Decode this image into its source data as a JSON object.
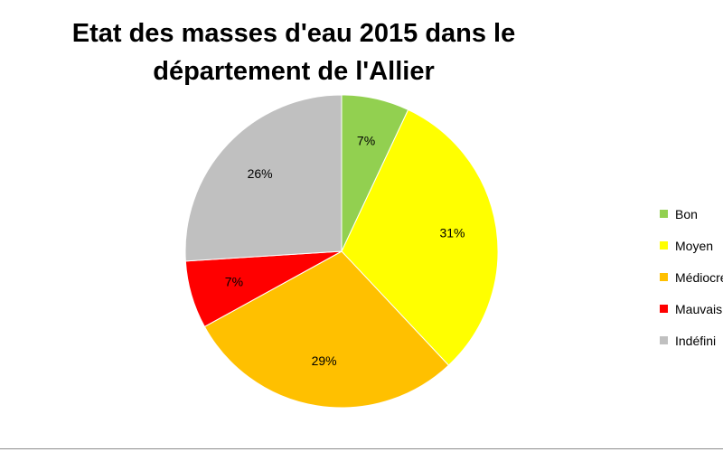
{
  "chart_data": {
    "type": "pie",
    "title_lines": [
      "Etat des masses d'eau 2015 dans le",
      "département de l'Allier"
    ],
    "slices": [
      {
        "name": "Bon",
        "label": "7%",
        "value": 7,
        "color": "#92d050"
      },
      {
        "name": "Moyen",
        "label": "31%",
        "value": 31,
        "color": "#ffff00"
      },
      {
        "name": "Médiocre",
        "label": "29%",
        "value": 29,
        "color": "#ffc000"
      },
      {
        "name": "Mauvais",
        "label": "7%",
        "value": 7,
        "color": "#ff0000"
      },
      {
        "name": "Indéfini",
        "label": "26%",
        "value": 26,
        "color": "#c0c0c0"
      }
    ],
    "legend": {
      "position": "right",
      "items": [
        "Bon",
        "Moyen",
        "Médiocre",
        "Mauvais",
        "Indéfini"
      ]
    }
  }
}
